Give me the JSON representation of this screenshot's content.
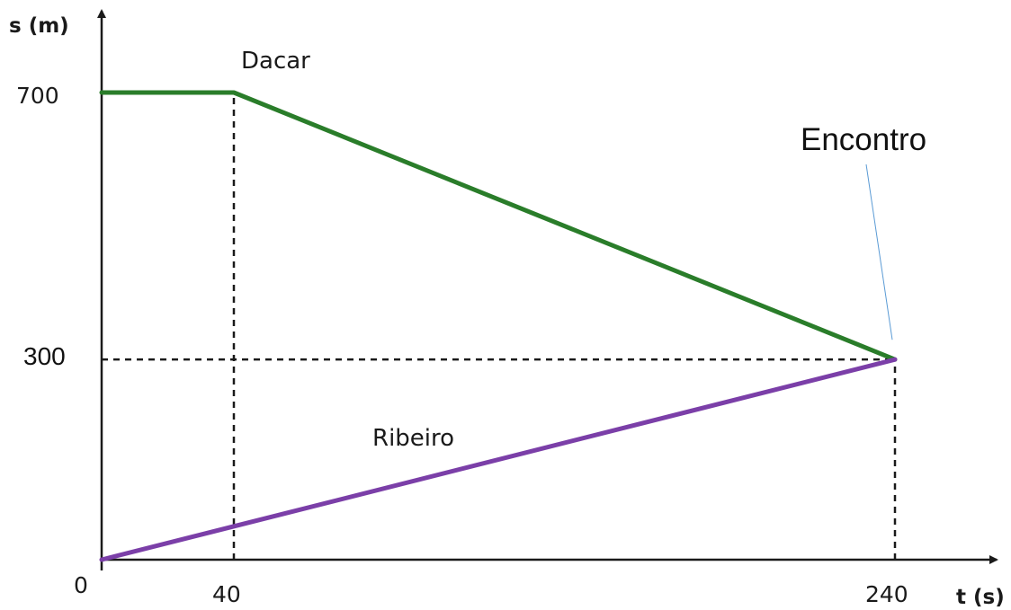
{
  "chart_data": {
    "type": "line",
    "title": "",
    "xlabel": "t (s)",
    "ylabel": "s (m)",
    "xlim": [
      0,
      240
    ],
    "ylim": [
      0,
      700
    ],
    "x_ticks": [
      {
        "value": 0,
        "label": "0"
      },
      {
        "value": 40,
        "label": "40"
      },
      {
        "value": 240,
        "label": "240"
      }
    ],
    "y_ticks": [
      {
        "value": 700,
        "label": "700"
      },
      {
        "value": 300,
        "label": "300"
      }
    ],
    "series": [
      {
        "name": "Dacar",
        "color": "#2a7d2a",
        "points": [
          [
            0,
            700
          ],
          [
            40,
            700
          ],
          [
            240,
            300
          ]
        ]
      },
      {
        "name": "Ribeiro",
        "color": "#7b3fa8",
        "points": [
          [
            0,
            0
          ],
          [
            240,
            300
          ]
        ]
      }
    ],
    "guide_lines": [
      {
        "from": [
          40,
          0
        ],
        "to": [
          40,
          700
        ]
      },
      {
        "from": [
          240,
          0
        ],
        "to": [
          240,
          300
        ]
      },
      {
        "from": [
          0,
          300
        ],
        "to": [
          240,
          300
        ]
      }
    ],
    "annotations": [
      {
        "text": "Encontro",
        "point": [
          240,
          300
        ],
        "color": "#5b9bd5"
      }
    ],
    "grid": false,
    "legend": "none"
  }
}
